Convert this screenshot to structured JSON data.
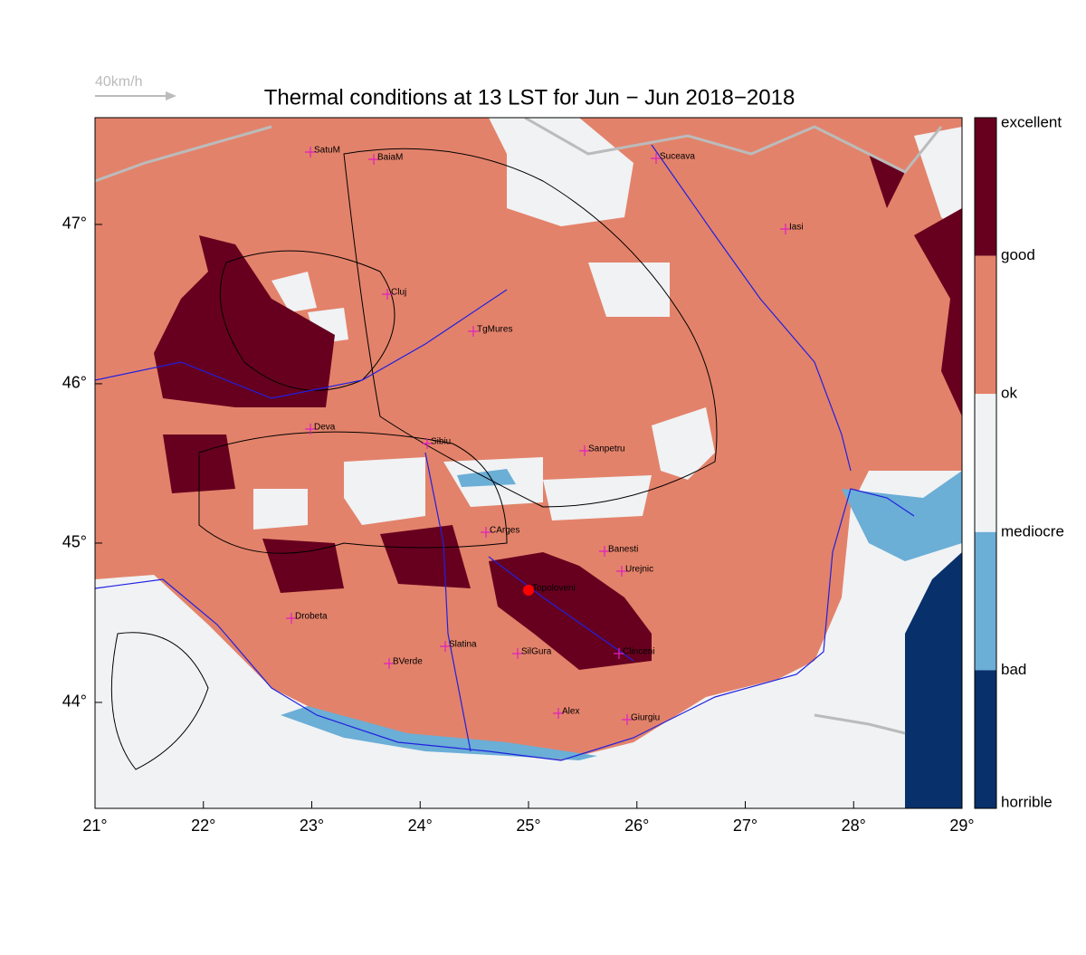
{
  "title": "Thermal conditions at 13 LST for Jun − Jun  2018−2018",
  "wind_scale": "40km/h",
  "xlim": [
    21,
    29
  ],
  "ylim": [
    43.335,
    47.67
  ],
  "xticks": [
    {
      "value": 21,
      "label": "21°"
    },
    {
      "value": 22,
      "label": "22°"
    },
    {
      "value": 23,
      "label": "23°"
    },
    {
      "value": 24,
      "label": "24°"
    },
    {
      "value": 25,
      "label": "25°"
    },
    {
      "value": 26,
      "label": "26°"
    },
    {
      "value": 27,
      "label": "27°"
    },
    {
      "value": 28,
      "label": "28°"
    },
    {
      "value": 29,
      "label": "29°"
    }
  ],
  "yticks": [
    {
      "value": 44,
      "label": "44°"
    },
    {
      "value": 45,
      "label": "45°"
    },
    {
      "value": 46,
      "label": "46°"
    },
    {
      "value": 47,
      "label": "47°"
    }
  ],
  "colorbar": {
    "labels": [
      "excellent",
      "good",
      "ok",
      "mediocre",
      "bad",
      "horrible"
    ],
    "colors": [
      "#67001f",
      "#e3826a",
      "#f0f2f4",
      "#6baed6",
      "#08306b"
    ]
  },
  "cities": [
    "SatuM",
    "BaiaM",
    "Suceava",
    "Iasi",
    "Cluj",
    "TgMures",
    "Deva",
    "Sibiu",
    "Sanpetru",
    "CArges",
    "Banesti",
    "Urejnic",
    "Topoloveni",
    "Drobeta",
    "Slatina",
    "SilGura",
    "BVerde",
    "Clinceni",
    "Alex",
    "Giurgiu"
  ]
}
